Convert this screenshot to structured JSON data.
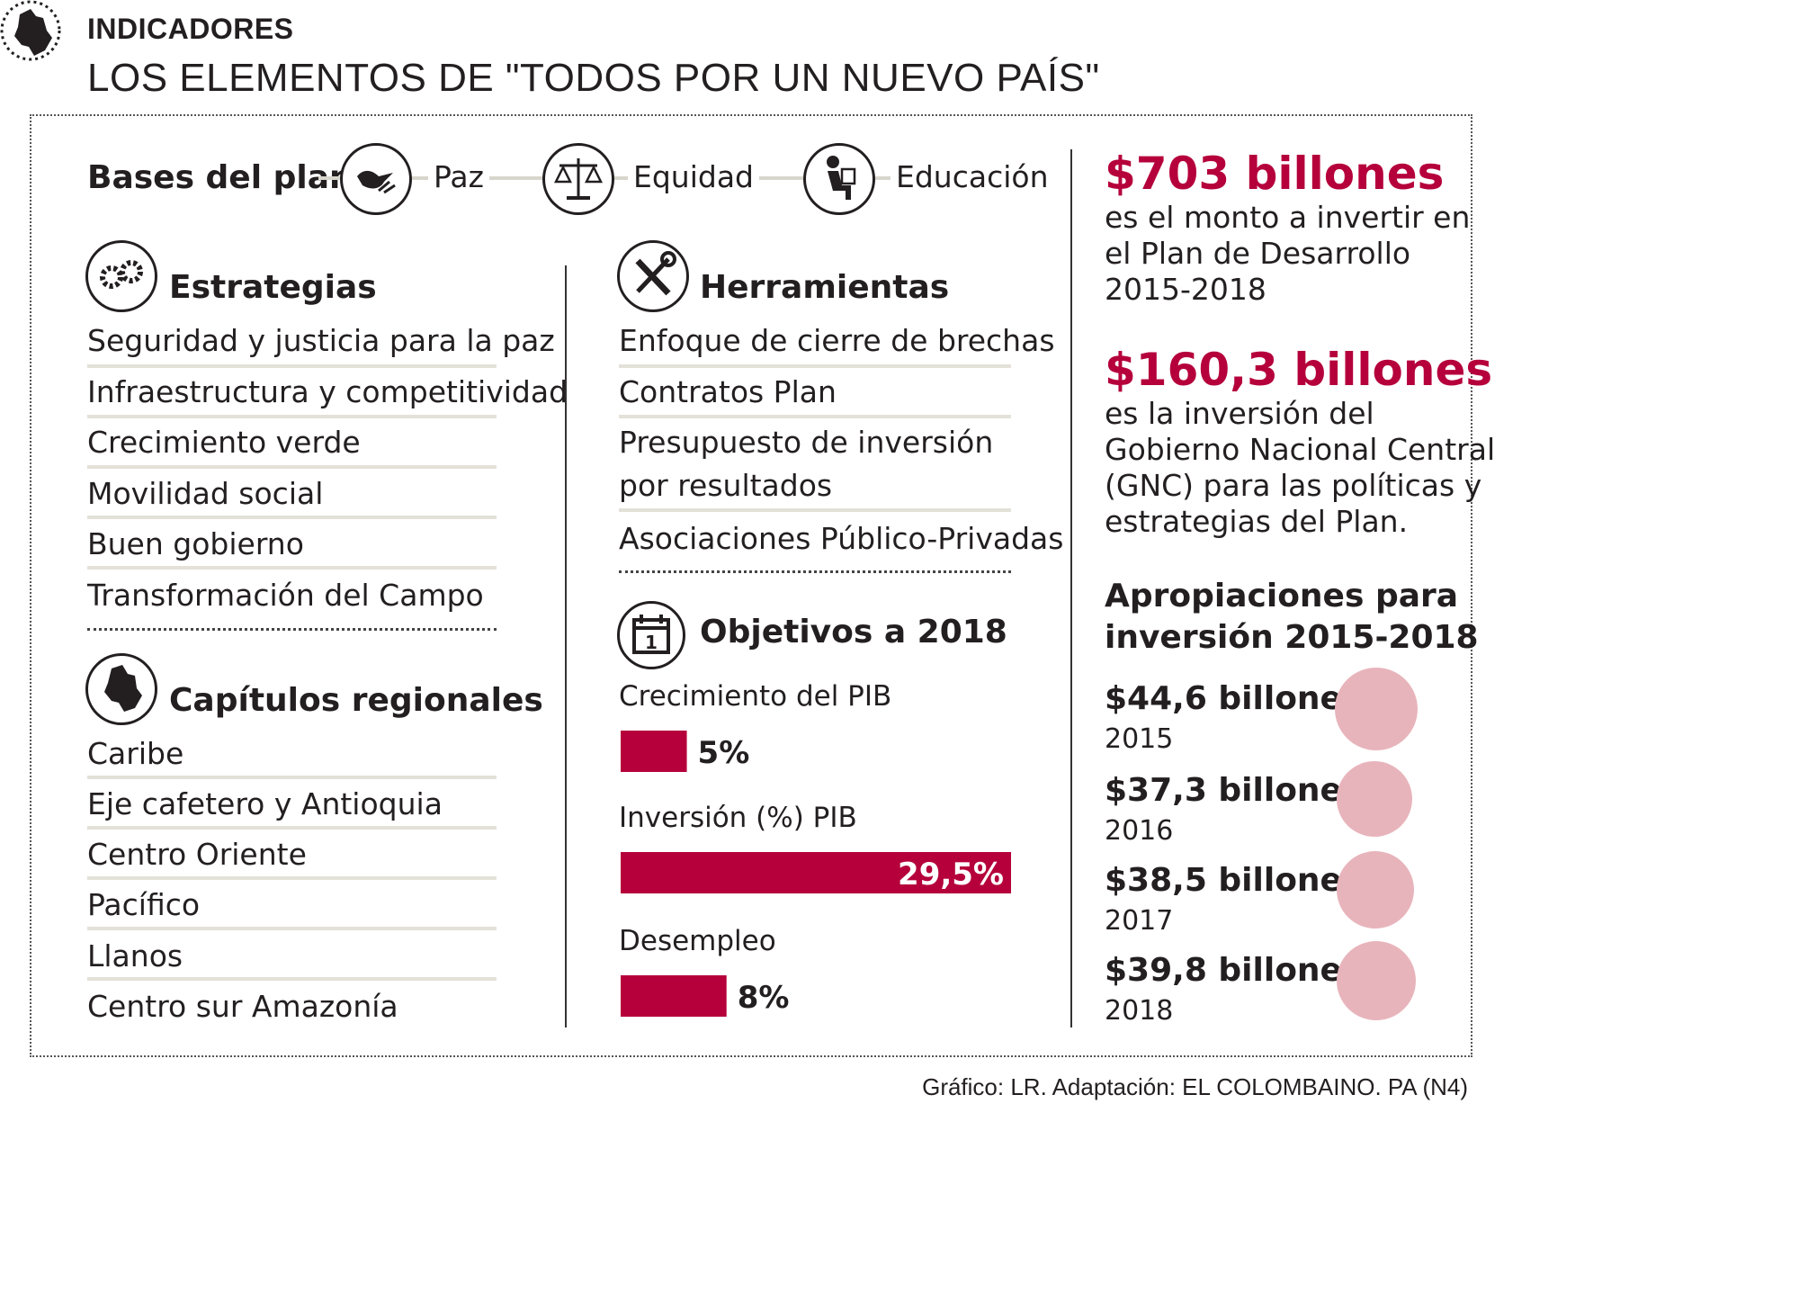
{
  "header": {
    "kicker": "INDICADORES",
    "title": "LOS ELEMENTOS DE \"TODOS POR UN NUEVO PAÍS\""
  },
  "bases": {
    "label": "Bases del plan",
    "items": [
      "Paz",
      "Equidad",
      "Educación"
    ]
  },
  "estrategias": {
    "title": "Estrategias",
    "items": [
      "Seguridad y justicia para la paz",
      "Infraestructura y competitividad",
      "Crecimiento verde",
      "Movilidad social",
      "Buen gobierno",
      "Transformación del Campo"
    ]
  },
  "capitulos": {
    "title": "Capítulos regionales",
    "items": [
      "Caribe",
      "Eje cafetero y Antioquia",
      "Centro Oriente",
      "Pacífico",
      "Llanos",
      "Centro sur Amazonía"
    ]
  },
  "herramientas": {
    "title": "Herramientas",
    "items": [
      "Enfoque de cierre de brechas",
      "Contratos Plan",
      "Presupuesto de inversión",
      "por resultados",
      "Asociaciones Público-Privadas"
    ]
  },
  "objetivos": {
    "title": "Objetivos a 2018",
    "calendar_digit": "1"
  },
  "chart_data": {
    "type": "bar",
    "title": "Objetivos a 2018",
    "categories": [
      "Crecimiento del PIB",
      "Inversión (%) PIB",
      "Desempleo"
    ],
    "values": [
      5,
      29.5,
      8
    ],
    "value_labels": [
      "5%",
      "29,5%",
      "8%"
    ],
    "xlim": [
      0,
      29.5
    ],
    "orientation": "horizontal",
    "color": "#b5003b"
  },
  "totals": {
    "amount1": "$703 billones",
    "text1": [
      "es el monto a invertir en",
      "el Plan de Desarrollo",
      "2015-2018"
    ],
    "amount2": "$160,3 billones",
    "text2": [
      "es la inversión del",
      "Gobierno Nacional Central",
      "(GNC) para las políticas y",
      "estrategias del Plan."
    ]
  },
  "apropiaciones": {
    "title": [
      "Apropiaciones para",
      "inversión 2015-2018"
    ],
    "items": [
      {
        "amount": "$44,6 billones",
        "year": "2015",
        "value": 44.6
      },
      {
        "amount": "$37,3 billones",
        "year": "2016",
        "value": 37.3
      },
      {
        "amount": "$38,5 billones",
        "year": "2017",
        "value": 38.5
      },
      {
        "amount": "$39,8 billones",
        "year": "2018",
        "value": 39.8
      }
    ]
  },
  "source": "Gráfico: LR. Adaptación: EL COLOMBAINO. PA (N4)",
  "colors": {
    "accent": "#b5003b",
    "circle": "#e8b4bb",
    "rule": "#e3e1d8",
    "text": "#231f20"
  },
  "icons": [
    "colombia-map-icon",
    "dove-hand-icon",
    "scales-icon",
    "reader-icon",
    "gears-icon",
    "tools-icon",
    "calendar-icon"
  ]
}
